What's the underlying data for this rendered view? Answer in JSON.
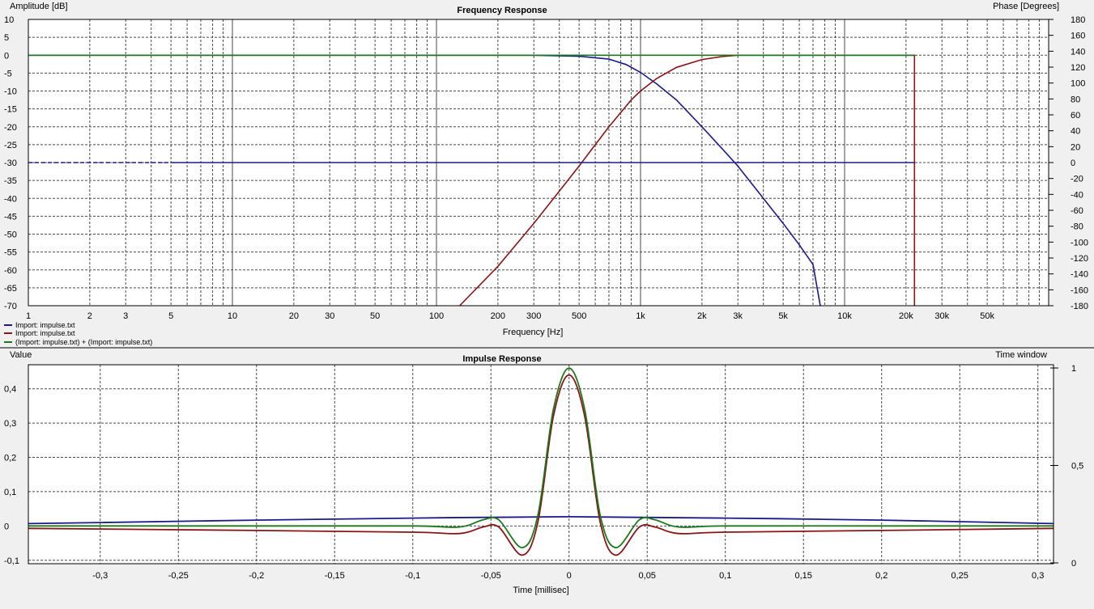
{
  "colors": {
    "blue": "#1a1a8c",
    "red": "#8c1414",
    "green": "#1a7a1a",
    "grid": "#4a4a4a",
    "plot_bg": "#ffffff",
    "window_bg": "#f0f0f0"
  },
  "chart_data": [
    {
      "type": "line",
      "title": "Frequency Response",
      "xlabel": "Frequency [Hz]",
      "ylabel": "Amplitude [dB]",
      "y2label": "Phase [Degrees]",
      "xscale": "log",
      "xlim": [
        1,
        100000
      ],
      "ylim": [
        -70,
        10
      ],
      "y2lim": [
        -180,
        180
      ],
      "grid": true,
      "legend_placement": "bottom-left",
      "x_ticks": [
        {
          "v": 1,
          "t": "1"
        },
        {
          "v": 2,
          "t": "2"
        },
        {
          "v": 3,
          "t": "3"
        },
        {
          "v": 5,
          "t": "5"
        },
        {
          "v": 10,
          "t": "10"
        },
        {
          "v": 20,
          "t": "20"
        },
        {
          "v": 30,
          "t": "30"
        },
        {
          "v": 50,
          "t": "50"
        },
        {
          "v": 100,
          "t": "100"
        },
        {
          "v": 200,
          "t": "200"
        },
        {
          "v": 300,
          "t": "300"
        },
        {
          "v": 500,
          "t": "500"
        },
        {
          "v": 1000,
          "t": "1k"
        },
        {
          "v": 2000,
          "t": "2k"
        },
        {
          "v": 3000,
          "t": "3k"
        },
        {
          "v": 5000,
          "t": "5k"
        },
        {
          "v": 10000,
          "t": "10k"
        },
        {
          "v": 20000,
          "t": "20k"
        },
        {
          "v": 30000,
          "t": "30k"
        },
        {
          "v": 50000,
          "t": "50k"
        }
      ],
      "y_ticks": [
        {
          "v": 10,
          "t": "10"
        },
        {
          "v": 5,
          "t": "5"
        },
        {
          "v": 0,
          "t": "0"
        },
        {
          "v": -5,
          "t": "-5"
        },
        {
          "v": -10,
          "t": "-10"
        },
        {
          "v": -15,
          "t": "-15"
        },
        {
          "v": -20,
          "t": "-20"
        },
        {
          "v": -25,
          "t": "-25"
        },
        {
          "v": -30,
          "t": "-30"
        },
        {
          "v": -35,
          "t": "-35"
        },
        {
          "v": -40,
          "t": "-40"
        },
        {
          "v": -45,
          "t": "-45"
        },
        {
          "v": -50,
          "t": "-50"
        },
        {
          "v": -55,
          "t": "-55"
        },
        {
          "v": -60,
          "t": "-60"
        },
        {
          "v": -65,
          "t": "-65"
        },
        {
          "v": -70,
          "t": "-70"
        }
      ],
      "y2_ticks": [
        {
          "v": 180,
          "t": "180"
        },
        {
          "v": 160,
          "t": "160"
        },
        {
          "v": 140,
          "t": "140"
        },
        {
          "v": 120,
          "t": "120"
        },
        {
          "v": 100,
          "t": "100"
        },
        {
          "v": 80,
          "t": "80"
        },
        {
          "v": 60,
          "t": "60"
        },
        {
          "v": 40,
          "t": "40"
        },
        {
          "v": 20,
          "t": "20"
        },
        {
          "v": 0,
          "t": "0"
        },
        {
          "v": -20,
          "t": "-20"
        },
        {
          "v": -40,
          "t": "-40"
        },
        {
          "v": -60,
          "t": "-60"
        },
        {
          "v": -80,
          "t": "-80"
        },
        {
          "v": -100,
          "t": "-100"
        },
        {
          "v": -120,
          "t": "-120"
        },
        {
          "v": -140,
          "t": "-140"
        },
        {
          "v": -160,
          "t": "-160"
        },
        {
          "v": -180,
          "t": "-180"
        }
      ],
      "legend": [
        {
          "name": "Import: impulse.txt",
          "color": "#1a1a8c"
        },
        {
          "name": "Import: impulse.txt",
          "color": "#8c1414"
        },
        {
          "name": "(Import: impulse.txt) + (Import: impulse.txt)",
          "color": "#1a7a1a"
        }
      ],
      "series": [
        {
          "name": "Import: impulse.txt",
          "color": "#1a1a8c",
          "x": [
            1,
            300,
            500,
            700,
            850,
            1000,
            1200,
            1500,
            2000,
            2500,
            3000,
            4000,
            5000,
            6000,
            7000,
            7600
          ],
          "y": [
            0,
            0,
            -0.3,
            -1.1,
            -2.6,
            -4.8,
            -8,
            -12.5,
            -20,
            -26,
            -31,
            -40,
            -47,
            -53,
            -58.5,
            -70
          ]
        },
        {
          "name": "Import: impulse.txt",
          "color": "#8c1414",
          "x": [
            130,
            200,
            300,
            400,
            500,
            600,
            700,
            800,
            900,
            1000,
            1200,
            1500,
            2000,
            2500,
            3000,
            5000,
            10000,
            20000,
            22000,
            22000
          ],
          "y": [
            -70,
            -59,
            -47,
            -38,
            -31,
            -25,
            -20,
            -16,
            -12.5,
            -10,
            -6.5,
            -3.4,
            -1.2,
            -0.4,
            0,
            0,
            0,
            0,
            0,
            -70
          ]
        },
        {
          "name": "(Import: impulse.txt) + (Import: impulse.txt)",
          "color": "#1a7a1a",
          "x": [
            1,
            500,
            1000,
            2000,
            3000,
            10000,
            22000
          ],
          "y": [
            0,
            0,
            0,
            0,
            0,
            0,
            0
          ]
        },
        {
          "name": "Import: impulse.txt",
          "color": "#1a1a8c",
          "x": [
            5,
            22000
          ],
          "y": [
            -30,
            -30
          ]
        }
      ]
    },
    {
      "type": "line",
      "title": "Impulse Response",
      "xlabel": "Time [millisec]",
      "ylabel": "Value",
      "y2label": "Time window",
      "xlim": [
        -0.346,
        0.31
      ],
      "ylim": [
        -0.11,
        0.47
      ],
      "y2lim": [
        0,
        1
      ],
      "grid": true,
      "x_ticks": [
        {
          "v": -0.3,
          "t": "-0,3"
        },
        {
          "v": -0.25,
          "t": "-0,25"
        },
        {
          "v": -0.2,
          "t": "-0,2"
        },
        {
          "v": -0.15,
          "t": "-0,15"
        },
        {
          "v": -0.1,
          "t": "-0,1"
        },
        {
          "v": -0.05,
          "t": "-0,05"
        },
        {
          "v": 0,
          "t": "0"
        },
        {
          "v": 0.05,
          "t": "0,05"
        },
        {
          "v": 0.1,
          "t": "0,1"
        },
        {
          "v": 0.15,
          "t": "0,15"
        },
        {
          "v": 0.2,
          "t": "0,2"
        },
        {
          "v": 0.25,
          "t": "0,25"
        },
        {
          "v": 0.3,
          "t": "0,3"
        }
      ],
      "y_ticks": [
        {
          "v": 0.4,
          "t": "0,4"
        },
        {
          "v": 0.3,
          "t": "0,3"
        },
        {
          "v": 0.2,
          "t": "0,2"
        },
        {
          "v": 0.1,
          "t": "0,1"
        },
        {
          "v": 0,
          "t": "0"
        },
        {
          "v": -0.1,
          "t": "-0,1"
        }
      ],
      "y2_ticks": [
        {
          "v": 1,
          "t": "1"
        },
        {
          "v": 0.5,
          "t": "0,5"
        },
        {
          "v": 0,
          "t": "0"
        }
      ],
      "series": [
        {
          "name": "Import: impulse.txt",
          "color": "#1a1a8c",
          "x": [
            -0.346,
            -0.3,
            -0.2,
            -0.1,
            0,
            0.1,
            0.2,
            0.31
          ],
          "y": [
            0.007,
            0.01,
            0.017,
            0.023,
            0.027,
            0.023,
            0.017,
            0.007
          ]
        },
        {
          "name": "Import: impulse.txt",
          "color": "#8c1414",
          "x": [
            -0.346,
            -0.2,
            -0.1,
            -0.07,
            -0.055,
            -0.045,
            -0.03,
            -0.02,
            -0.01,
            0,
            0.01,
            0.02,
            0.03,
            0.045,
            0.055,
            0.07,
            0.1,
            0.2,
            0.31
          ],
          "y": [
            -0.007,
            -0.013,
            -0.018,
            -0.022,
            -0.003,
            -0.003,
            -0.085,
            0.01,
            0.32,
            0.44,
            0.32,
            0.01,
            -0.085,
            -0.003,
            -0.003,
            -0.022,
            -0.018,
            -0.013,
            -0.007
          ]
        },
        {
          "name": "(Import: impulse.txt) + (Import: impulse.txt)",
          "color": "#1a7a1a",
          "x": [
            -0.346,
            -0.2,
            -0.1,
            -0.07,
            -0.055,
            -0.045,
            -0.03,
            -0.02,
            -0.01,
            0,
            0.01,
            0.02,
            0.03,
            0.045,
            0.055,
            0.07,
            0.1,
            0.2,
            0.31
          ],
          "y": [
            0,
            0,
            0,
            -0.003,
            0.018,
            0.018,
            -0.063,
            0.03,
            0.34,
            0.46,
            0.34,
            0.03,
            -0.063,
            0.018,
            0.018,
            -0.003,
            0,
            0,
            0
          ]
        }
      ]
    }
  ]
}
